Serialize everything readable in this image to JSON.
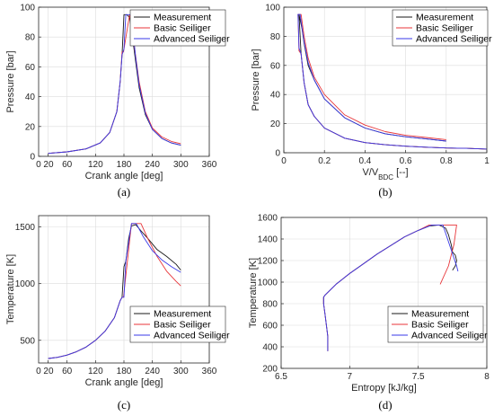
{
  "colors": {
    "measurement": "#1a1a1a",
    "basic": "#e8363a",
    "advanced": "#3a3ae8"
  },
  "legend": [
    "Measurement",
    "Basic Seiliger",
    "Advanced Seiliger"
  ],
  "chart_data": [
    {
      "type": "line",
      "caption": "(a)",
      "xlabel": "Crank angle [deg]",
      "ylabel": "Pressure [bar]",
      "xlim": [
        0,
        360
      ],
      "ylim": [
        0,
        100
      ],
      "xticks": [
        20,
        60,
        120,
        180,
        240,
        300,
        360
      ],
      "xtick_labels": [
        "0 20",
        "60",
        "120",
        "180",
        "240",
        "300",
        "360"
      ],
      "yticks": [
        0,
        20,
        40,
        60,
        80,
        100
      ],
      "grid": true,
      "legend_position": "top-right",
      "series": [
        {
          "name": "Measurement",
          "color_key": "measurement",
          "x": [
            20,
            60,
            100,
            130,
            150,
            165,
            172,
            176,
            180,
            186,
            192,
            198,
            204,
            212,
            225,
            240,
            260,
            280,
            300
          ],
          "y": [
            2,
            3,
            5,
            9,
            16,
            30,
            50,
            68,
            95,
            95,
            93,
            80,
            65,
            46,
            28,
            18,
            12,
            9,
            7.5
          ]
        },
        {
          "name": "Basic Seiliger",
          "color_key": "basic",
          "x": [
            20,
            60,
            100,
            130,
            150,
            165,
            172,
            176,
            179,
            192,
            200,
            212,
            225,
            240,
            260,
            280,
            300
          ],
          "y": [
            2,
            3,
            5,
            9,
            16,
            30,
            50,
            70,
            70,
            95,
            78,
            50,
            30,
            19,
            13,
            10,
            8.5
          ]
        },
        {
          "name": "Advanced Seiliger",
          "color_key": "advanced",
          "x": [
            20,
            60,
            100,
            130,
            150,
            165,
            172,
            176,
            180,
            184,
            196,
            204,
            212,
            225,
            240,
            260,
            280,
            300
          ],
          "y": [
            2,
            3,
            5,
            9,
            16,
            30,
            50,
            68,
            72,
            95,
            95,
            68,
            48,
            29,
            18,
            12,
            9,
            7.5
          ]
        }
      ]
    },
    {
      "type": "line",
      "caption": "(b)",
      "xlabel": "V/V",
      "xlabel_sub": "BDC",
      "xlabel_suffix": " [--]",
      "ylabel": "Pressure [bar]",
      "xlim": [
        0,
        1
      ],
      "ylim": [
        0,
        100
      ],
      "xticks": [
        0,
        0.2,
        0.4,
        0.6,
        0.8,
        1
      ],
      "xtick_labels": [
        "0",
        "0.2",
        "0.4",
        "0.6",
        "0.8",
        "1"
      ],
      "yticks": [
        0,
        20,
        40,
        60,
        80,
        100
      ],
      "grid": true,
      "legend_position": "top-right",
      "series": [
        {
          "name": "Measurement",
          "color_key": "measurement",
          "x": [
            1,
            0.9,
            0.8,
            0.7,
            0.6,
            0.5,
            0.4,
            0.3,
            0.2,
            0.15,
            0.12,
            0.1,
            0.085,
            0.075,
            0.07,
            0.075,
            0.09,
            0.1,
            0.12,
            0.15,
            0.2,
            0.3,
            0.4,
            0.5,
            0.6,
            0.7,
            0.8
          ],
          "y": [
            2.5,
            3,
            3.3,
            3.8,
            4.5,
            5.5,
            7,
            10,
            17,
            25,
            33,
            48,
            68,
            95,
            95,
            95,
            85,
            75,
            60,
            50,
            37,
            24,
            17,
            13,
            11,
            9.5,
            8
          ]
        },
        {
          "name": "Basic Seiliger",
          "color_key": "basic",
          "x": [
            1,
            0.9,
            0.8,
            0.7,
            0.6,
            0.5,
            0.4,
            0.3,
            0.2,
            0.15,
            0.12,
            0.1,
            0.085,
            0.075,
            0.07,
            0.085,
            0.1,
            0.12,
            0.15,
            0.2,
            0.3,
            0.4,
            0.5,
            0.6,
            0.7,
            0.8
          ],
          "y": [
            2.5,
            3,
            3.3,
            3.8,
            4.5,
            5.5,
            7,
            10,
            17,
            25,
            33,
            48,
            68,
            70,
            95,
            95,
            80,
            65,
            52,
            40,
            26,
            19,
            14.5,
            12,
            10.5,
            9
          ]
        },
        {
          "name": "Advanced Seiliger",
          "color_key": "advanced",
          "x": [
            1,
            0.9,
            0.8,
            0.7,
            0.6,
            0.5,
            0.4,
            0.3,
            0.2,
            0.15,
            0.12,
            0.1,
            0.085,
            0.075,
            0.07,
            0.08,
            0.1,
            0.12,
            0.15,
            0.2,
            0.3,
            0.4,
            0.5,
            0.6,
            0.7,
            0.8
          ],
          "y": [
            2.5,
            3,
            3.3,
            3.8,
            4.5,
            5.5,
            7,
            10,
            17,
            25,
            33,
            48,
            68,
            72,
            95,
            95,
            76,
            62,
            50,
            37,
            24,
            17,
            13,
            11,
            9.5,
            8
          ]
        }
      ]
    },
    {
      "type": "line",
      "caption": "(c)",
      "xlabel": "Crank angle [deg]",
      "ylabel": "Temperature [K]",
      "xlim": [
        0,
        360
      ],
      "ylim": [
        300,
        1600
      ],
      "xticks": [
        20,
        60,
        120,
        180,
        240,
        300,
        360
      ],
      "xtick_labels": [
        "0 20",
        "60",
        "120",
        "180",
        "240",
        "300",
        "360"
      ],
      "yticks": [
        500,
        1000,
        1500
      ],
      "grid": true,
      "legend_position": "bottom-right",
      "series": [
        {
          "name": "Measurement",
          "color_key": "measurement",
          "x": [
            20,
            40,
            60,
            80,
            100,
            120,
            140,
            160,
            172,
            176,
            180,
            184,
            190,
            196,
            205,
            215,
            230,
            250,
            270,
            290,
            300
          ],
          "y": [
            340,
            350,
            370,
            400,
            440,
            500,
            580,
            700,
            850,
            880,
            1150,
            1200,
            1400,
            1510,
            1520,
            1470,
            1400,
            1300,
            1240,
            1170,
            1120
          ]
        },
        {
          "name": "Basic Seiliger",
          "color_key": "basic",
          "x": [
            20,
            40,
            60,
            80,
            100,
            120,
            140,
            160,
            172,
            176,
            179,
            196,
            216,
            230,
            250,
            270,
            290,
            300
          ],
          "y": [
            340,
            350,
            370,
            400,
            440,
            500,
            580,
            700,
            850,
            880,
            880,
            1530,
            1530,
            1400,
            1240,
            1110,
            1020,
            980
          ]
        },
        {
          "name": "Advanced Seiliger",
          "color_key": "advanced",
          "x": [
            20,
            40,
            60,
            80,
            100,
            120,
            140,
            160,
            172,
            176,
            180,
            184,
            196,
            206,
            220,
            240,
            260,
            280,
            300
          ],
          "y": [
            340,
            350,
            370,
            400,
            440,
            500,
            580,
            700,
            850,
            880,
            880,
            1200,
            1530,
            1530,
            1420,
            1290,
            1210,
            1150,
            1100
          ]
        }
      ]
    },
    {
      "type": "line",
      "caption": "(d)",
      "xlabel": "Entropy [kJ/kg]",
      "ylabel": "Temperature [K]",
      "xlim": [
        6.5,
        8
      ],
      "ylim": [
        200,
        1600
      ],
      "xticks": [
        6.5,
        7,
        7.5,
        8
      ],
      "xtick_labels": [
        "6.5",
        "7",
        "7.5",
        "8"
      ],
      "yticks": [
        200,
        400,
        600,
        800,
        1000,
        1200,
        1400,
        1600
      ],
      "grid": true,
      "legend_position": "bottom-right",
      "series": [
        {
          "name": "Measurement",
          "color_key": "measurement",
          "x": [
            6.84,
            6.84,
            6.83,
            6.82,
            6.81,
            6.81,
            6.82,
            6.9,
            7.0,
            7.1,
            7.2,
            7.3,
            7.4,
            7.5,
            7.58,
            7.65,
            7.7,
            7.72,
            7.74,
            7.75,
            7.77,
            7.78,
            7.77,
            7.75
          ],
          "y": [
            360,
            500,
            600,
            700,
            800,
            860,
            880,
            980,
            1080,
            1170,
            1260,
            1340,
            1420,
            1480,
            1520,
            1530,
            1500,
            1440,
            1350,
            1280,
            1250,
            1200,
            1150,
            1110
          ]
        },
        {
          "name": "Basic Seiliger",
          "color_key": "basic",
          "x": [
            6.84,
            6.84,
            6.83,
            6.82,
            6.81,
            6.81,
            6.82,
            6.9,
            7.0,
            7.1,
            7.2,
            7.3,
            7.4,
            7.5,
            7.58,
            7.7,
            7.78,
            7.76,
            7.72,
            7.66
          ],
          "y": [
            360,
            500,
            600,
            700,
            800,
            860,
            880,
            980,
            1080,
            1170,
            1260,
            1340,
            1420,
            1480,
            1530,
            1530,
            1530,
            1350,
            1150,
            980
          ]
        },
        {
          "name": "Advanced Seiliger",
          "color_key": "advanced",
          "x": [
            6.84,
            6.84,
            6.83,
            6.82,
            6.81,
            6.81,
            6.82,
            6.9,
            7.0,
            7.1,
            7.2,
            7.3,
            7.4,
            7.5,
            7.6,
            7.68,
            7.74,
            7.78,
            7.79
          ],
          "y": [
            360,
            500,
            600,
            700,
            800,
            860,
            880,
            980,
            1080,
            1170,
            1260,
            1340,
            1420,
            1480,
            1530,
            1530,
            1300,
            1150,
            1100
          ]
        }
      ]
    }
  ]
}
